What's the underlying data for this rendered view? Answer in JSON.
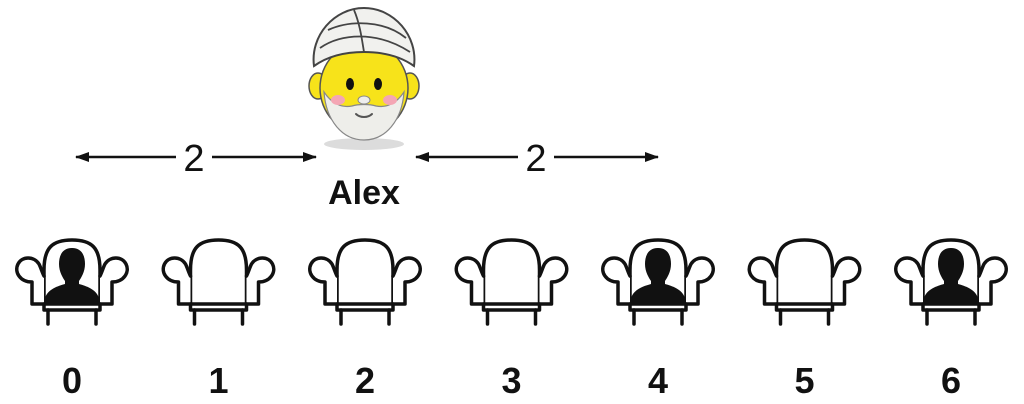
{
  "person": {
    "name": "Alex",
    "seat_index": 2
  },
  "seats": [
    {
      "label": "0",
      "occupied": true
    },
    {
      "label": "1",
      "occupied": false
    },
    {
      "label": "2",
      "occupied": false
    },
    {
      "label": "3",
      "occupied": false
    },
    {
      "label": "4",
      "occupied": true
    },
    {
      "label": "5",
      "occupied": false
    },
    {
      "label": "6",
      "occupied": true
    }
  ],
  "distances": {
    "left": "2",
    "right": "2"
  },
  "colors": {
    "ink": "#111111",
    "face": "#f7e31a",
    "turban": "#f1f1ee",
    "beard": "#eeeeea",
    "cheek": "#f4a6b4",
    "shadow": "#dcdcdc"
  },
  "icons": {
    "seat": "armchair-icon",
    "occupant": "person-silhouette-icon",
    "avatar": "turban-man-icon"
  }
}
